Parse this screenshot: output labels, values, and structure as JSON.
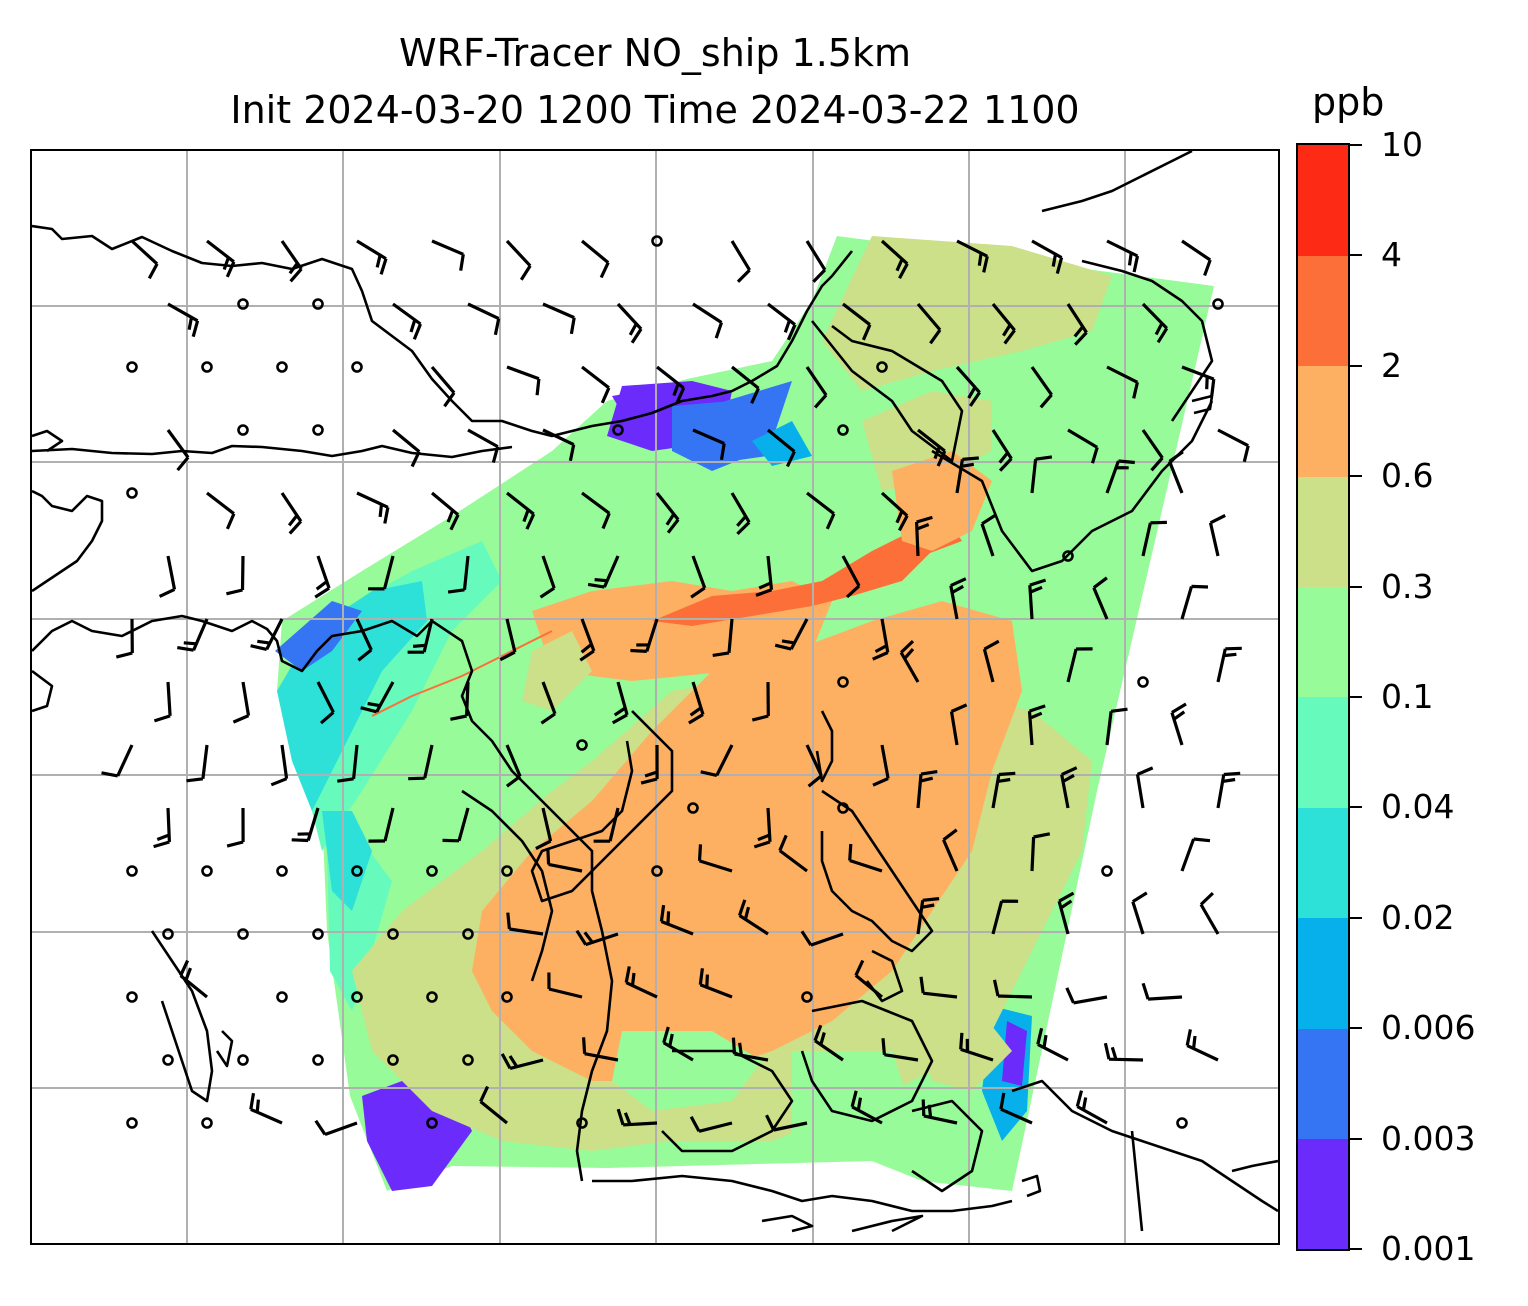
{
  "figure": {
    "title_line1": "WRF-Tracer NO_ship 1.5km",
    "title_line2": "Init 2024-03-20 1200 Time 2024-03-22 1100"
  },
  "colorbar": {
    "unit": "ppb",
    "levels": [
      "0.001",
      "0.003",
      "0.006",
      "0.02",
      "0.04",
      "0.1",
      "0.3",
      "0.6",
      "2",
      "4",
      "10"
    ],
    "colors": [
      "#6a2bfb",
      "#3575f3",
      "#07b0ea",
      "#2de0d8",
      "#66fbbd",
      "#98fb9a",
      "#cbe088",
      "#fdb062",
      "#fd6f39",
      "#fd2a15"
    ]
  },
  "map": {
    "gridlines": true,
    "gridline_color": "#b0b0b0",
    "coastline_color": "#000000",
    "wind_barbs": true,
    "calm_markers": true
  }
}
